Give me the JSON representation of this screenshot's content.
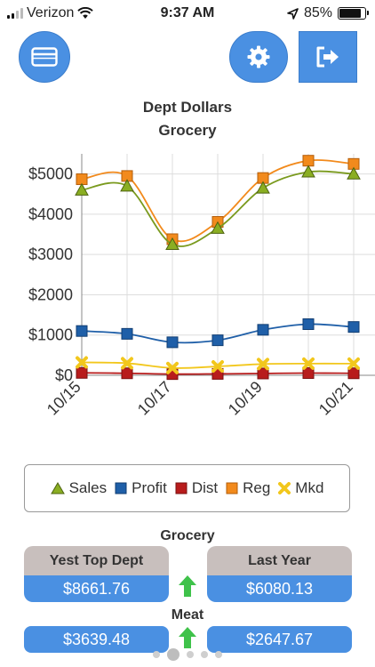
{
  "status_bar": {
    "carrier": "Verizon",
    "time": "9:37 AM",
    "battery": "85%",
    "battery_level": 0.85
  },
  "header": {
    "menu_icon": "card-icon",
    "settings_icon": "gear-icon",
    "logout_icon": "logout-arrow-icon"
  },
  "chart": {
    "title": "Dept Dollars",
    "subtitle": "Grocery"
  },
  "chart_data": {
    "type": "line",
    "title": "Dept Dollars",
    "subtitle": "Grocery",
    "x": [
      "10/15",
      "10/16",
      "10/17",
      "10/18",
      "10/19",
      "10/20",
      "10/21"
    ],
    "x_tick_labels": [
      "10/15",
      "10/17",
      "10/19",
      "10/21"
    ],
    "y_tick_labels": [
      "$0",
      "$1000",
      "$2000",
      "$3000",
      "$4000",
      "$5000"
    ],
    "ylim": [
      0,
      5500
    ],
    "grid": true,
    "legend_position": "bottom",
    "series": [
      {
        "name": "Sales",
        "color": "#7a9a1e",
        "marker": "triangle",
        "values": [
          4600,
          4700,
          3250,
          3650,
          4650,
          5050,
          5000
        ]
      },
      {
        "name": "Profit",
        "color": "#1f5fa8",
        "marker": "square",
        "values": [
          1100,
          1030,
          820,
          870,
          1130,
          1270,
          1200
        ]
      },
      {
        "name": "Dist",
        "color": "#b81c1c",
        "marker": "square",
        "values": [
          60,
          50,
          30,
          35,
          45,
          55,
          50
        ]
      },
      {
        "name": "Reg",
        "color": "#f28a1c",
        "marker": "square",
        "values": [
          4870,
          4950,
          3380,
          3810,
          4900,
          5330,
          5250
        ]
      },
      {
        "name": "Mkd",
        "color": "#f2c71c",
        "marker": "x",
        "values": [
          320,
          300,
          180,
          220,
          280,
          290,
          290
        ]
      }
    ]
  },
  "legend": {
    "sales": "Sales",
    "profit": "Profit",
    "dist": "Dist",
    "reg": "Reg",
    "mkd": "Mkd"
  },
  "summary": {
    "grocery_title": "Grocery",
    "yest_top_dept_label": "Yest Top Dept",
    "last_year_label": "Last Year",
    "grocery_yest_value": "$8661.76",
    "grocery_last_year_value": "$6080.13",
    "meat_title": "Meat",
    "meat_yest_value": "$3639.48",
    "meat_last_year_value": "$2647.67",
    "trend_color": "#3fc24a"
  },
  "pager": {
    "page_count": 5,
    "active_index": 1
  }
}
